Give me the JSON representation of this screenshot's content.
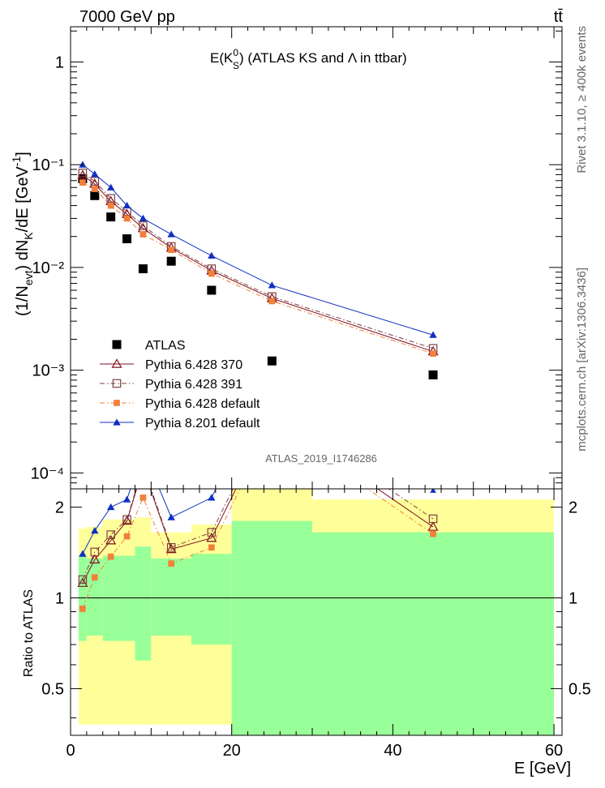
{
  "header": {
    "left": "7000 GeV pp",
    "right": "tt̄"
  },
  "side_labels": {
    "rivet": "Rivet 3.1.10, ≥ 400k events",
    "mcplots": "mcplots.cern.ch [arXiv:1306.3436]"
  },
  "chart_data": {
    "type": "scatter",
    "title": "E(K⁰S) (ATLAS KS and Λ in ttbar)",
    "title_main": "E(K",
    "title_sup": "0",
    "title_sub": "S",
    "title_rest": ") (ATLAS KS and Λ in ttbar)",
    "analysis_tag": "ATLAS_2019_I1746286",
    "ylabel": "(1/N_evt) dN_K/dE [GeV⁻¹]",
    "ylabel_parts": {
      "a": "(1/N",
      "a_sub": "evt",
      "b": ") dN",
      "b_sub": "K",
      "c": "/dE [GeV",
      "c_sup": "-1",
      "d": "]"
    },
    "xlabel": "E [GeV]",
    "ratio_ylabel": "Ratio to ATLAS",
    "xlim": [
      0,
      61
    ],
    "ylim": [
      7e-05,
      2.2
    ],
    "yscale": "log",
    "ratio_ylim": [
      0.35,
      2.3
    ],
    "ratio_yscale": "log",
    "x_ticks": [
      "0",
      "20",
      "40",
      "60"
    ],
    "y_ticks": [
      "1",
      "10⁻¹",
      "10⁻²",
      "10⁻³",
      "10⁻⁴"
    ],
    "ratio_ticks": [
      "0.5",
      "1",
      "2"
    ],
    "legend_position": "bottom-left",
    "bins": [
      [
        1,
        2
      ],
      [
        2,
        4
      ],
      [
        4,
        6
      ],
      [
        6,
        8
      ],
      [
        8,
        10
      ],
      [
        10,
        15
      ],
      [
        15,
        20
      ],
      [
        20,
        30
      ],
      [
        30,
        60
      ]
    ],
    "x": [
      1.5,
      3,
      5,
      7,
      9,
      12.5,
      17.5,
      25,
      45
    ],
    "series": [
      {
        "name": "ATLAS",
        "marker": "filled-square",
        "color": "#000000",
        "values": [
          0.073,
          0.05,
          0.031,
          0.019,
          0.0097,
          0.0115,
          0.006,
          0.00123,
          0.0009
        ]
      },
      {
        "name": "Pythia 6.428 370",
        "marker": "open-triangle",
        "color": "#7f1020",
        "dash": "solid",
        "values": [
          0.079,
          0.065,
          0.044,
          0.033,
          0.024,
          0.0155,
          0.0093,
          0.005,
          0.00152
        ]
      },
      {
        "name": "Pythia 6.428 391",
        "marker": "open-square",
        "color": "#7f3f3f",
        "dash": "dashdot",
        "values": [
          0.083,
          0.069,
          0.047,
          0.035,
          0.0255,
          0.016,
          0.0097,
          0.0052,
          0.00163
        ]
      },
      {
        "name": "Pythia 6.428 default",
        "marker": "filled-square-small",
        "color": "#f27f3a",
        "dash": "dashdot",
        "values": [
          0.067,
          0.058,
          0.04,
          0.03,
          0.021,
          0.0148,
          0.0087,
          0.0047,
          0.00145
        ]
      },
      {
        "name": "Pythia 8.201 default",
        "marker": "filled-triangle",
        "color": "#1030c0",
        "dash": "solid",
        "values": [
          0.1,
          0.081,
          0.06,
          0.04,
          0.03,
          0.021,
          0.013,
          0.0067,
          0.0022
        ]
      }
    ],
    "ratio_series": [
      {
        "name": "Pythia 6.428 370",
        "values": [
          1.12,
          1.34,
          1.55,
          1.8,
          2.7,
          1.45,
          1.58,
          4.0,
          1.72
        ]
      },
      {
        "name": "Pythia 6.428 391",
        "values": [
          1.15,
          1.42,
          1.62,
          1.82,
          2.75,
          1.47,
          1.65,
          4.2,
          1.83
        ]
      },
      {
        "name": "Pythia 6.428 default",
        "values": [
          0.92,
          1.17,
          1.37,
          1.6,
          2.15,
          1.3,
          1.47,
          3.8,
          1.63
        ]
      },
      {
        "name": "Pythia 8.201 default",
        "values": [
          1.4,
          1.67,
          2.0,
          2.12,
          3.1,
          1.85,
          2.15,
          5.5,
          2.58
        ]
      }
    ],
    "ratio_band_yellow": [
      [
        0.38,
        1.7
      ],
      [
        0.38,
        1.72
      ],
      [
        0.38,
        1.82
      ],
      [
        0.38,
        1.82
      ],
      [
        0.38,
        1.85
      ],
      [
        0.38,
        1.65
      ],
      [
        0.38,
        1.75
      ],
      [
        0.35,
        2.3
      ],
      [
        0.35,
        2.12
      ]
    ],
    "ratio_band_green": [
      [
        0.72,
        1.38
      ],
      [
        0.75,
        1.35
      ],
      [
        0.72,
        1.38
      ],
      [
        0.72,
        1.38
      ],
      [
        0.62,
        1.48
      ],
      [
        0.75,
        1.35
      ],
      [
        0.7,
        1.4
      ],
      [
        0.35,
        1.8
      ],
      [
        0.35,
        1.65
      ]
    ]
  }
}
